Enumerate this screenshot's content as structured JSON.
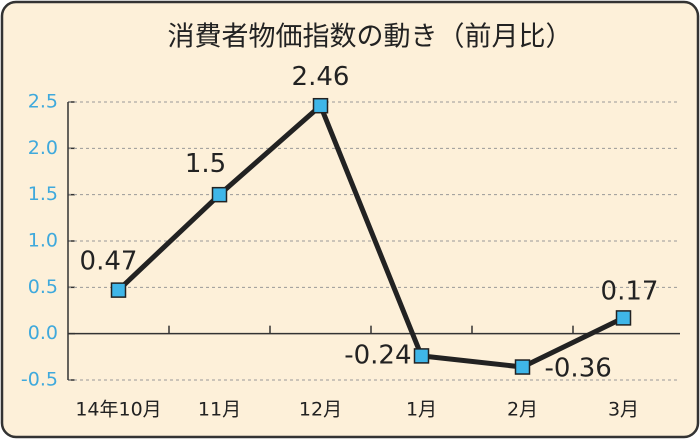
{
  "chart_data": {
    "type": "line",
    "title": "消費者物価指数の動き（前月比）",
    "categories": [
      "14年10月",
      "11月",
      "12月",
      "1月",
      "2月",
      "3月"
    ],
    "series": [
      {
        "name": "前月比",
        "color": "#222222",
        "marker_color": "#3fb6e8",
        "values": [
          0.47,
          1.5,
          2.46,
          -0.24,
          -0.36,
          0.17
        ]
      }
    ],
    "ylim": [
      -0.5,
      2.5
    ],
    "yticks": [
      -0.5,
      {
        "value": 0,
        "label": "0.0"
      },
      0.5,
      {
        "value": 1,
        "label": "1.0"
      },
      1.5,
      {
        "value": 2,
        "label": "2.0"
      },
      2.5
    ],
    "grid": true
  }
}
